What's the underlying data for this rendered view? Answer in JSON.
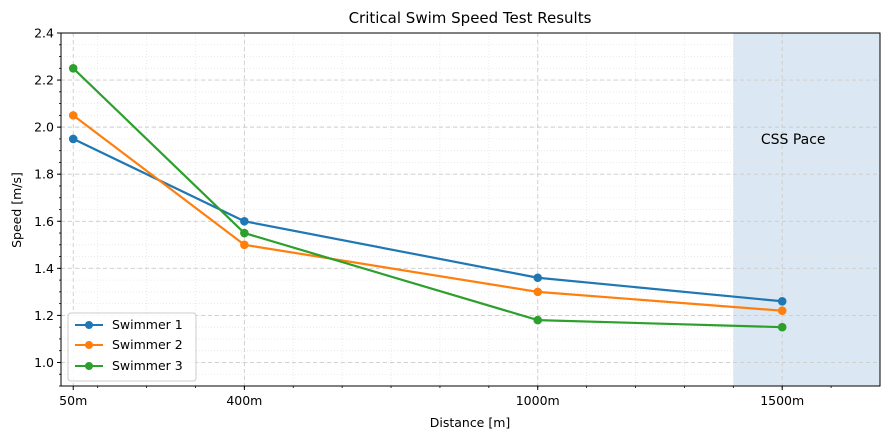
{
  "chart_data": {
    "type": "line",
    "title": "Critical Swim Speed Test Results",
    "xlabel": "Distance [m]",
    "ylabel": "Speed [m/s]",
    "x_tick_labels": [
      "50m",
      "400m",
      "1000m",
      "1500m"
    ],
    "x": [
      50,
      400,
      1000,
      1500
    ],
    "xlim": [
      25,
      1700
    ],
    "ylim": [
      0.9,
      2.4
    ],
    "y_ticks": [
      "1.0",
      "1.2",
      "1.4",
      "1.6",
      "1.8",
      "2.0",
      "2.2",
      "2.4"
    ],
    "grid": true,
    "legend_position": "lower-left",
    "series": [
      {
        "name": "Swimmer 1",
        "color": "#1f77b4",
        "values": [
          1.95,
          1.6,
          1.36,
          1.26
        ]
      },
      {
        "name": "Swimmer 2",
        "color": "#ff7f0e",
        "values": [
          2.05,
          1.5,
          1.3,
          1.22
        ]
      },
      {
        "name": "Swimmer 3",
        "color": "#2ca02c",
        "values": [
          2.25,
          1.55,
          1.18,
          1.15
        ]
      }
    ],
    "shaded_region": {
      "x_start": 1400,
      "x_end": 1700,
      "color": "#dbe8f3"
    },
    "annotation": {
      "text": "CSS Pace",
      "x": 1500,
      "y": 1.95
    }
  }
}
